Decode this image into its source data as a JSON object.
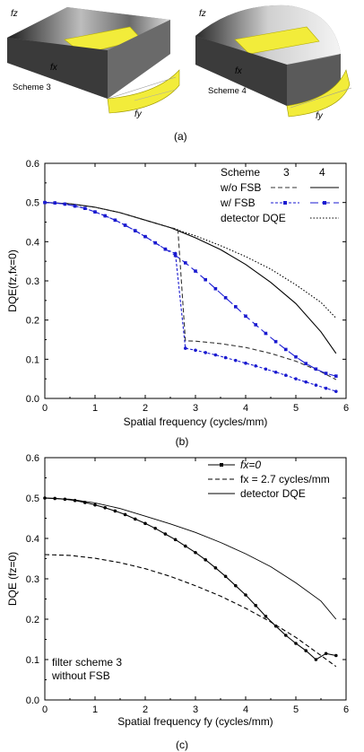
{
  "panel_a": {
    "caption": "(a)",
    "schemes": [
      {
        "label": "Scheme 3",
        "axis_fz": "fz",
        "axis_fx": "fx",
        "axis_fy": "fy"
      },
      {
        "label": "Scheme 4",
        "axis_fz": "fz",
        "axis_fx": "fx",
        "axis_fy": "fy"
      }
    ],
    "colors": {
      "filter_band": "#f2ec3a",
      "body_dark": "#2b2b2b",
      "body_light": "#f0f0f0"
    }
  },
  "chart_data": [
    {
      "type": "line",
      "caption": "(b)",
      "xlabel": "Spatial frequency (cycles/mm)",
      "ylabel": "DQE(fz,fx=0)",
      "xlim": [
        0,
        6
      ],
      "ylim": [
        0,
        0.6
      ],
      "xticks": [
        "0",
        "1",
        "2",
        "3",
        "4",
        "5",
        "6"
      ],
      "yticks": [
        "0.0",
        "0.1",
        "0.2",
        "0.3",
        "0.4",
        "0.5",
        "0.6"
      ],
      "legend_placement": "top-right",
      "legend": {
        "header": "Scheme",
        "col3": "3",
        "col4": "4",
        "rows": [
          "w/o FSB",
          "w/ FSB",
          "detector DQE"
        ]
      },
      "series": [
        {
          "name": "w/o FSB",
          "scheme": "4",
          "color": "#000000",
          "dash": "solid",
          "marker": false,
          "x": [
            0,
            0.5,
            1,
            1.5,
            2,
            2.5,
            3,
            3.5,
            4,
            4.5,
            5,
            5.5,
            5.8
          ],
          "y": [
            0.5,
            0.497,
            0.488,
            0.474,
            0.455,
            0.436,
            0.41,
            0.38,
            0.342,
            0.296,
            0.242,
            0.17,
            0.115
          ]
        },
        {
          "name": "detector DQE",
          "color": "#000000",
          "dash": "dotted",
          "marker": false,
          "x": [
            0,
            0.5,
            1,
            1.5,
            2,
            2.5,
            3,
            3.5,
            4,
            4.5,
            5,
            5.5,
            5.8
          ],
          "y": [
            0.5,
            0.497,
            0.488,
            0.474,
            0.455,
            0.436,
            0.415,
            0.39,
            0.362,
            0.33,
            0.29,
            0.245,
            0.205
          ]
        },
        {
          "name": "w/o FSB",
          "scheme": "3",
          "color": "#333333",
          "dash": "dashed",
          "marker": false,
          "x": [
            0,
            0.5,
            1,
            1.5,
            2,
            2.5,
            2.65,
            2.8,
            3,
            3.5,
            4,
            4.5,
            5,
            5.5,
            5.8
          ],
          "y": [
            0.5,
            0.497,
            0.488,
            0.474,
            0.455,
            0.436,
            0.432,
            0.147,
            0.146,
            0.14,
            0.13,
            0.115,
            0.095,
            0.068,
            0.048
          ]
        },
        {
          "name": "w/ FSB",
          "scheme": "3",
          "color": "#1a1ad0",
          "dash": "short-dash",
          "marker": true,
          "x": [
            0,
            0.2,
            0.4,
            0.6,
            0.8,
            1,
            1.2,
            1.4,
            1.6,
            1.8,
            2,
            2.2,
            2.4,
            2.6,
            2.8,
            3,
            3.2,
            3.4,
            3.6,
            3.8,
            4,
            4.2,
            4.4,
            4.6,
            4.8,
            5,
            5.2,
            5.4,
            5.6,
            5.8
          ],
          "y": [
            0.5,
            0.499,
            0.496,
            0.491,
            0.485,
            0.476,
            0.466,
            0.455,
            0.442,
            0.428,
            0.413,
            0.397,
            0.381,
            0.37,
            0.128,
            0.123,
            0.117,
            0.111,
            0.104,
            0.097,
            0.09,
            0.083,
            0.075,
            0.067,
            0.059,
            0.05,
            0.042,
            0.034,
            0.026,
            0.018
          ]
        },
        {
          "name": "w/ FSB",
          "scheme": "4",
          "color": "#1a1ad0",
          "dash": "long-dash",
          "marker": true,
          "x": [
            0,
            0.2,
            0.4,
            0.6,
            0.8,
            1,
            1.2,
            1.4,
            1.6,
            1.8,
            2,
            2.2,
            2.4,
            2.6,
            2.8,
            3,
            3.2,
            3.4,
            3.6,
            3.8,
            4,
            4.2,
            4.4,
            4.6,
            4.8,
            5,
            5.2,
            5.4,
            5.6,
            5.8
          ],
          "y": [
            0.5,
            0.499,
            0.496,
            0.491,
            0.485,
            0.476,
            0.466,
            0.455,
            0.442,
            0.428,
            0.413,
            0.397,
            0.381,
            0.365,
            0.346,
            0.325,
            0.303,
            0.28,
            0.257,
            0.234,
            0.21,
            0.188,
            0.166,
            0.145,
            0.125,
            0.106,
            0.089,
            0.075,
            0.064,
            0.057
          ]
        }
      ]
    },
    {
      "type": "line",
      "caption": "(c)",
      "xlabel": "Spatial frequency fy (cycles/mm)",
      "ylabel": "DQE (fz=0)",
      "xlim": [
        0,
        6
      ],
      "ylim": [
        0,
        0.6
      ],
      "xticks": [
        "0",
        "1",
        "2",
        "3",
        "4",
        "5",
        "6"
      ],
      "yticks": [
        "0.0",
        "0.1",
        "0.2",
        "0.3",
        "0.4",
        "0.5",
        "0.6"
      ],
      "legend_placement": "top-right",
      "annotation": [
        "filter scheme 3",
        "without FSB"
      ],
      "series": [
        {
          "name": "fx=0",
          "color": "#000000",
          "dash": "solid",
          "marker": true,
          "x": [
            0,
            0.2,
            0.4,
            0.6,
            0.8,
            1,
            1.2,
            1.4,
            1.6,
            1.8,
            2,
            2.2,
            2.4,
            2.6,
            2.8,
            3,
            3.2,
            3.4,
            3.6,
            3.8,
            4,
            4.2,
            4.4,
            4.6,
            4.8,
            5,
            5.2,
            5.4,
            5.6,
            5.8
          ],
          "y": [
            0.5,
            0.499,
            0.497,
            0.494,
            0.489,
            0.483,
            0.476,
            0.468,
            0.459,
            0.448,
            0.437,
            0.425,
            0.411,
            0.397,
            0.381,
            0.365,
            0.347,
            0.327,
            0.306,
            0.283,
            0.26,
            0.234,
            0.207,
            0.183,
            0.16,
            0.14,
            0.122,
            0.1,
            0.115,
            0.11
          ]
        },
        {
          "name": "fx = 2.7 cycles/mm",
          "color": "#000000",
          "dash": "dashed",
          "marker": false,
          "x": [
            0,
            0.5,
            1,
            1.5,
            2,
            2.5,
            3,
            3.5,
            4,
            4.5,
            5,
            5.5,
            5.8
          ],
          "y": [
            0.36,
            0.358,
            0.351,
            0.34,
            0.325,
            0.306,
            0.283,
            0.257,
            0.227,
            0.193,
            0.155,
            0.11,
            0.083
          ]
        },
        {
          "name": "detector DQE",
          "color": "#000000",
          "dash": "solid-thin",
          "marker": false,
          "x": [
            0,
            0.5,
            1,
            1.5,
            2,
            2.5,
            3,
            3.5,
            4,
            4.5,
            5,
            5.5,
            5.8
          ],
          "y": [
            0.5,
            0.497,
            0.488,
            0.474,
            0.455,
            0.436,
            0.415,
            0.39,
            0.362,
            0.33,
            0.29,
            0.245,
            0.2
          ]
        }
      ]
    }
  ]
}
